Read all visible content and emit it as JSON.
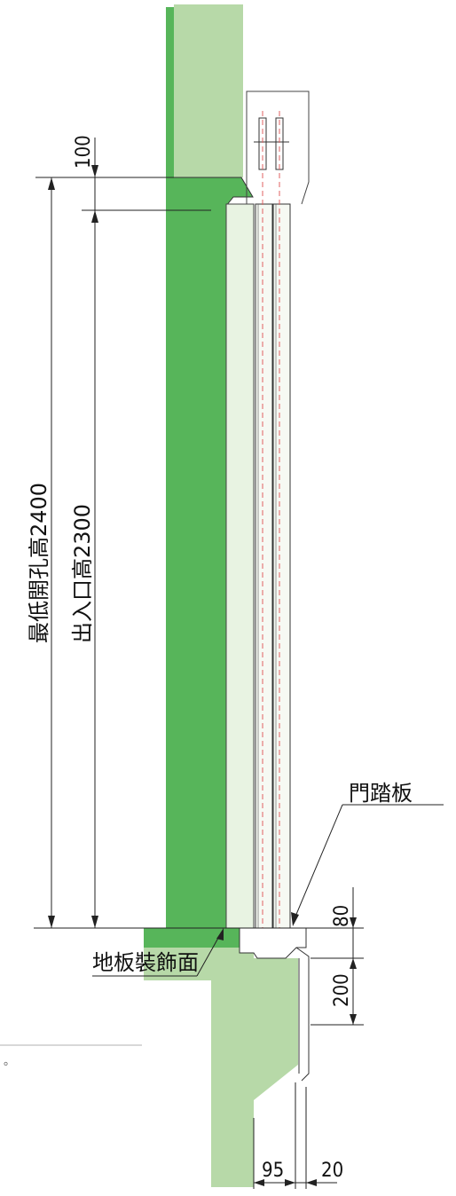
{
  "labels": {
    "min_opening_height": "最低開孔高2400",
    "entrance_height": "出入口高2300",
    "floor_finish": "地板裝飾面",
    "sill_plate": "門踏板",
    "note_fragment": "。"
  },
  "dimensions": {
    "top_gap": "100",
    "sill_height": "80",
    "sill_depth": "200",
    "bottom_width_a": "95",
    "bottom_width_b": "20"
  },
  "colors": {
    "wall_dark": "#57b55a",
    "wall_light": "#b7d9a8",
    "door_panel": "#e8f3e2",
    "dim_line": "#222222",
    "hidden_line": "#e06060"
  }
}
